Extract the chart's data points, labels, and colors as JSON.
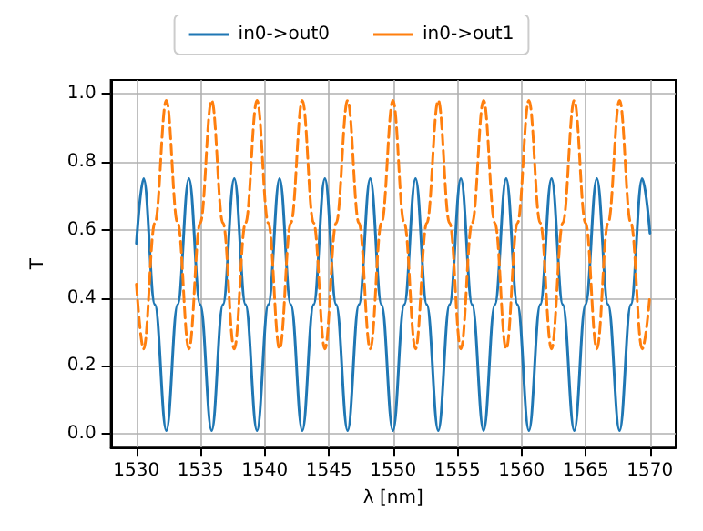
{
  "chart_data": {
    "type": "line",
    "xlabel": "λ [nm]",
    "ylabel": "T",
    "x": [
      1530,
      1530.56,
      1531.44,
      1532.33,
      1533.21,
      1534.09,
      1534.97,
      1535.86,
      1536.74,
      1537.62,
      1538.5,
      1539.39,
      1540.27,
      1541.15,
      1542.03,
      1542.92,
      1543.8,
      1544.68,
      1545.56,
      1546.45,
      1547.33,
      1548.21,
      1549.09,
      1549.98,
      1550.86,
      1551.74,
      1552.62,
      1553.51,
      1554.39,
      1555.27,
      1556.15,
      1557.04,
      1557.92,
      1558.8,
      1559.68,
      1560.57,
      1561.45,
      1562.33,
      1563.21,
      1564.1,
      1564.98,
      1565.86,
      1566.74,
      1567.63,
      1568.51,
      1569.39,
      1570
    ],
    "series": [
      {
        "name": "in0->out0",
        "color": "#1f77b4",
        "line_style": "solid",
        "values": [
          0.56,
          0.75,
          0.38,
          0.01,
          0.38,
          0.75,
          0.38,
          0.01,
          0.38,
          0.75,
          0.38,
          0.01,
          0.38,
          0.75,
          0.38,
          0.01,
          0.38,
          0.75,
          0.38,
          0.01,
          0.38,
          0.75,
          0.38,
          0.01,
          0.38,
          0.75,
          0.38,
          0.01,
          0.38,
          0.75,
          0.38,
          0.01,
          0.38,
          0.75,
          0.38,
          0.01,
          0.38,
          0.75,
          0.38,
          0.01,
          0.38,
          0.75,
          0.38,
          0.01,
          0.38,
          0.75,
          0.59
        ]
      },
      {
        "name": "in0->out1",
        "color": "#ff7f0e",
        "line_style": "dashed",
        "values": [
          0.44,
          0.25,
          0.62,
          0.98,
          0.62,
          0.25,
          0.62,
          0.98,
          0.62,
          0.25,
          0.62,
          0.98,
          0.62,
          0.25,
          0.62,
          0.98,
          0.62,
          0.25,
          0.62,
          0.98,
          0.62,
          0.25,
          0.62,
          0.98,
          0.62,
          0.25,
          0.62,
          0.98,
          0.62,
          0.25,
          0.62,
          0.98,
          0.62,
          0.25,
          0.62,
          0.98,
          0.62,
          0.25,
          0.62,
          0.98,
          0.62,
          0.25,
          0.62,
          0.98,
          0.62,
          0.25,
          0.41
        ]
      }
    ],
    "xlim": [
      1528,
      1572
    ],
    "xticks": [
      1530,
      1535,
      1540,
      1545,
      1550,
      1555,
      1560,
      1565,
      1570
    ],
    "ylim": [
      -0.04,
      1.04
    ],
    "yticks": [
      {
        "value": 0,
        "label": "0.0"
      },
      {
        "value": 0.2,
        "label": "0.2"
      },
      {
        "value": 0.4,
        "label": "0.4"
      },
      {
        "value": 0.6,
        "label": "0.6"
      },
      {
        "value": 0.8,
        "label": "0.8"
      },
      {
        "value": 1,
        "label": "1.0"
      }
    ],
    "grid": true,
    "legend": "top",
    "marker": "none"
  }
}
